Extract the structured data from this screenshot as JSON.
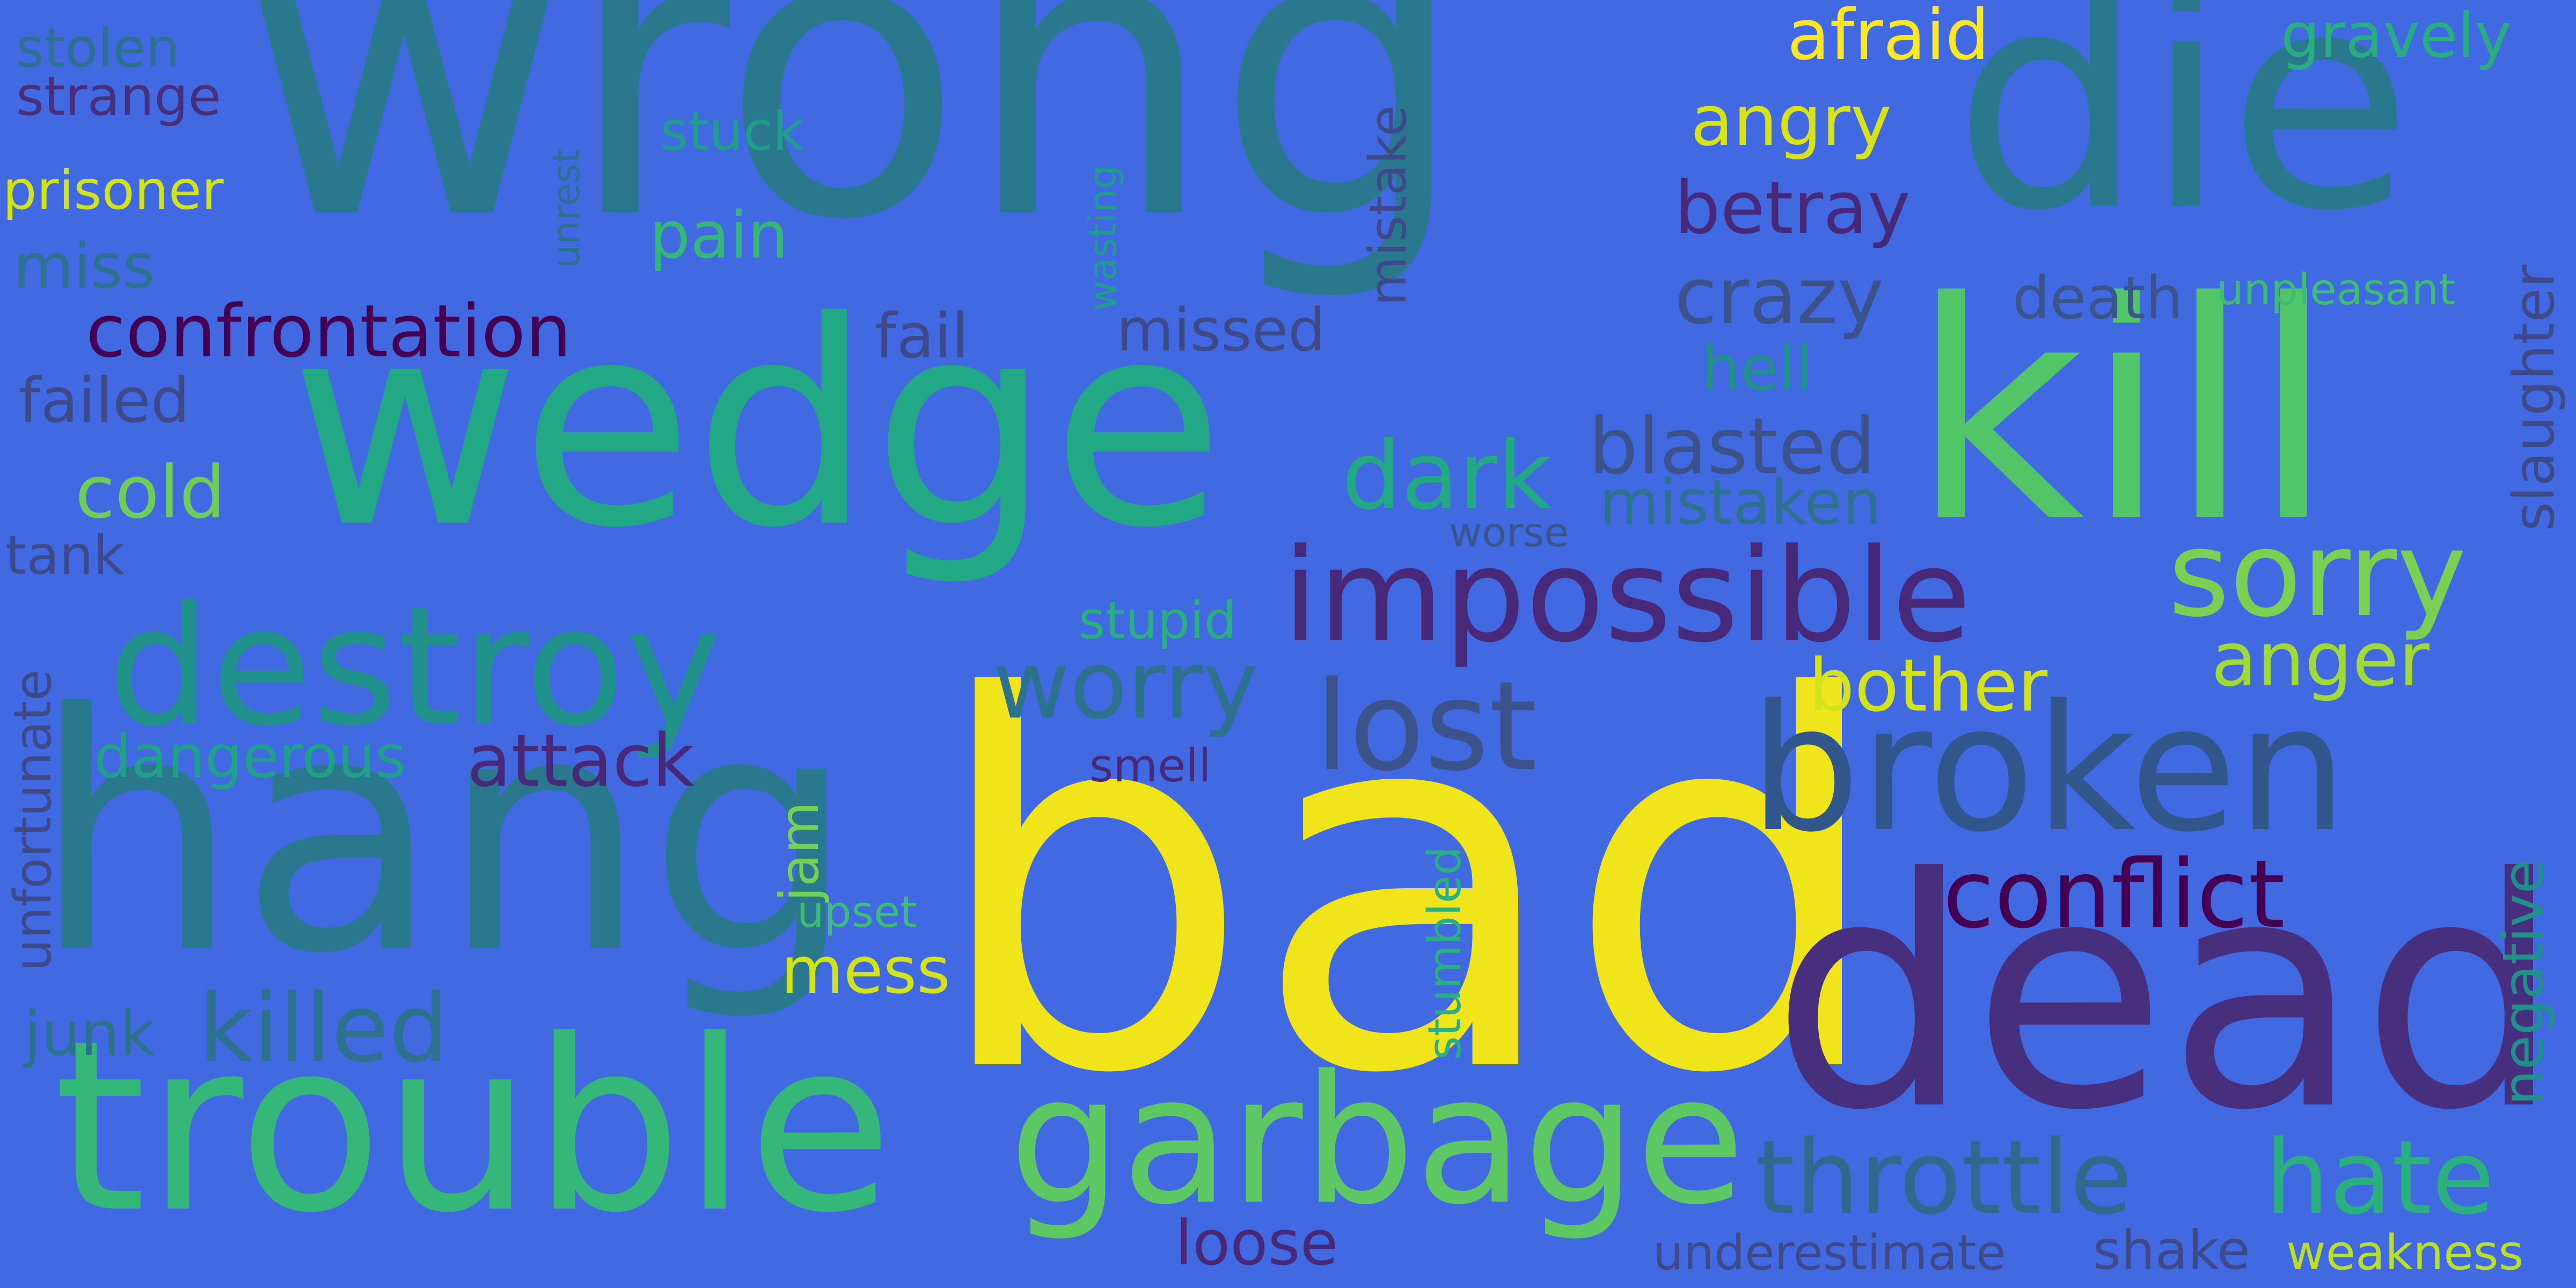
{
  "background_color": "#4169E1",
  "palette": {
    "dark_purple": "#440154",
    "indigo": "#472D7B",
    "slate": "#3B528B",
    "steel": "#2C728E",
    "teal": "#21918C",
    "green_teal": "#28AE80",
    "green": "#5DC863",
    "lime": "#ADDC30",
    "yellow": "#FDE725"
  },
  "words": [
    {
      "text": "wrong",
      "color": "#2A788E"
    },
    {
      "text": "bad",
      "color": "#F0E51A"
    },
    {
      "text": "hang",
      "color": "#2A788E"
    },
    {
      "text": "dead",
      "color": "#472F7D"
    },
    {
      "text": "kill",
      "color": "#52C569"
    },
    {
      "text": "die",
      "color": "#2A788E"
    },
    {
      "text": "wedge",
      "color": "#22A884"
    },
    {
      "text": "trouble",
      "color": "#35B779"
    },
    {
      "text": "garbage",
      "color": "#5DC863"
    },
    {
      "text": "broken",
      "color": "#31568C"
    },
    {
      "text": "destroy",
      "color": "#21918C"
    },
    {
      "text": "impossible",
      "color": "#482878"
    },
    {
      "text": "lost",
      "color": "#3B528B"
    },
    {
      "text": "sorry",
      "color": "#7AD151"
    },
    {
      "text": "conflict",
      "color": "#440154"
    },
    {
      "text": "throttle",
      "color": "#31688E"
    },
    {
      "text": "hate",
      "color": "#2AB07F"
    },
    {
      "text": "killed",
      "color": "#2C728E"
    },
    {
      "text": "worry",
      "color": "#2C728E"
    },
    {
      "text": "dark",
      "color": "#22A884"
    },
    {
      "text": "blasted",
      "color": "#3B528B"
    },
    {
      "text": "confrontation",
      "color": "#440154"
    },
    {
      "text": "attack",
      "color": "#482878"
    },
    {
      "text": "anger",
      "color": "#A0DA39"
    },
    {
      "text": "bother",
      "color": "#D2E21B"
    },
    {
      "text": "crazy",
      "color": "#3B528B"
    },
    {
      "text": "betray",
      "color": "#482878"
    },
    {
      "text": "angry",
      "color": "#D8E219"
    },
    {
      "text": "afraid",
      "color": "#FDE725"
    },
    {
      "text": "gravely",
      "color": "#27AD81"
    },
    {
      "text": "death",
      "color": "#39558C"
    },
    {
      "text": "mistaken",
      "color": "#2C728E"
    },
    {
      "text": "hell",
      "color": "#21918C"
    },
    {
      "text": "unpleasant",
      "color": "#3DBC74"
    },
    {
      "text": "slaughter",
      "color": "#3E4989"
    },
    {
      "text": "negative",
      "color": "#21918C"
    },
    {
      "text": "mistake",
      "color": "#3E4989"
    },
    {
      "text": "missed",
      "color": "#3E4989"
    },
    {
      "text": "fail",
      "color": "#3E4989"
    },
    {
      "text": "stuck",
      "color": "#1F9E89"
    },
    {
      "text": "pain",
      "color": "#35B779"
    },
    {
      "text": "unrest",
      "color": "#2C728E"
    },
    {
      "text": "wasting",
      "color": "#1F9E89"
    },
    {
      "text": "stolen",
      "color": "#2C728E"
    },
    {
      "text": "strange",
      "color": "#472F7D"
    },
    {
      "text": "prisoner",
      "color": "#D2E21B"
    },
    {
      "text": "miss",
      "color": "#2C728E"
    },
    {
      "text": "failed",
      "color": "#3E4989"
    },
    {
      "text": "cold",
      "color": "#6CCE59"
    },
    {
      "text": "tank",
      "color": "#3E4989"
    },
    {
      "text": "unfortunate",
      "color": "#3E4989"
    },
    {
      "text": "dangerous",
      "color": "#1FA187"
    },
    {
      "text": "stupid",
      "color": "#2AB07F"
    },
    {
      "text": "worse",
      "color": "#39558C"
    },
    {
      "text": "smell",
      "color": "#482878"
    },
    {
      "text": "jam",
      "color": "#75D054"
    },
    {
      "text": "upset",
      "color": "#3DBC74"
    },
    {
      "text": "mess",
      "color": "#D2E21B"
    },
    {
      "text": "junk",
      "color": "#2C728E"
    },
    {
      "text": "stumbled",
      "color": "#2AB07F"
    },
    {
      "text": "loose",
      "color": "#482878"
    },
    {
      "text": "underestimate",
      "color": "#3E4989"
    },
    {
      "text": "shake",
      "color": "#3E4989"
    },
    {
      "text": "weakness",
      "color": "#BBDF27"
    }
  ]
}
